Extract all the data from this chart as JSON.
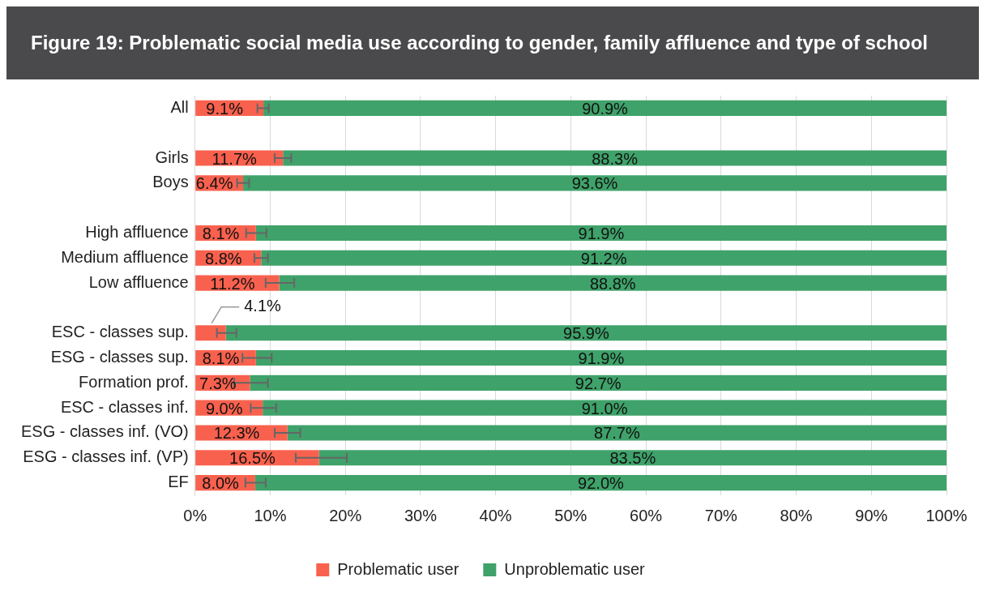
{
  "chart_data": {
    "type": "bar",
    "orientation": "horizontal",
    "stacked": true,
    "title": "Figure 19: Problematic social media use according to gender, family affluence and type of school",
    "categories": [
      "All",
      null,
      "Girls",
      "Boys",
      null,
      "High affluence",
      "Medium affluence",
      "Low affluence",
      null,
      "ESC - classes sup.",
      "ESG - classes sup.",
      "Formation prof.",
      "ESC - classes inf.",
      "ESG - classes inf. (VO)",
      "ESG - classes inf. (VP)",
      "EF"
    ],
    "series": [
      {
        "name": "Problematic user",
        "color": "#f8614e",
        "values": [
          9.1,
          null,
          11.7,
          6.4,
          null,
          8.1,
          8.8,
          11.2,
          null,
          4.1,
          8.1,
          7.3,
          9.0,
          12.3,
          16.5,
          8.0
        ],
        "value_labels": [
          "9.1%",
          null,
          "11.7%",
          "6.4%",
          null,
          "8.1%",
          "8.8%",
          "11.2%",
          null,
          "4.1%",
          "8.1%",
          "7.3%",
          "9.0%",
          "12.3%",
          "16.5%",
          "8.0%"
        ],
        "errors": [
          [
            8.3,
            9.8
          ],
          null,
          [
            10.6,
            12.8
          ],
          [
            5.6,
            7.2
          ],
          null,
          [
            6.8,
            9.5
          ],
          [
            7.9,
            9.7
          ],
          [
            9.4,
            13.2
          ],
          null,
          [
            2.9,
            5.5
          ],
          [
            6.3,
            10.2
          ],
          [
            5.2,
            9.7
          ],
          [
            7.4,
            10.8
          ],
          [
            10.6,
            14.0
          ],
          [
            13.4,
            20.2
          ],
          [
            6.7,
            9.4
          ]
        ]
      },
      {
        "name": "Unproblematic user",
        "color": "#3fa26a",
        "values": [
          90.9,
          null,
          88.3,
          93.6,
          null,
          91.9,
          91.2,
          88.8,
          null,
          95.9,
          91.9,
          92.7,
          91.0,
          87.7,
          83.5,
          92.0
        ],
        "value_labels": [
          "90.9%",
          null,
          "88.3%",
          "93.6%",
          null,
          "91.9%",
          "91.2%",
          "88.8%",
          null,
          "95.9%",
          "91.9%",
          "92.7%",
          "91.0%",
          "87.7%",
          "83.5%",
          "92.0%"
        ]
      }
    ],
    "xlim": [
      0,
      100
    ],
    "xticks": [
      {
        "value": 0,
        "label": "0%"
      },
      {
        "value": 10,
        "label": "10%"
      },
      {
        "value": 20,
        "label": "20%"
      },
      {
        "value": 30,
        "label": "30%"
      },
      {
        "value": 40,
        "label": "40%"
      },
      {
        "value": 50,
        "label": "50%"
      },
      {
        "value": 60,
        "label": "60%"
      },
      {
        "value": 70,
        "label": "70%"
      },
      {
        "value": 80,
        "label": "80%"
      },
      {
        "value": 90,
        "label": "90%"
      },
      {
        "value": 100,
        "label": "100%"
      }
    ],
    "grid": "x",
    "legend": "bottom"
  }
}
